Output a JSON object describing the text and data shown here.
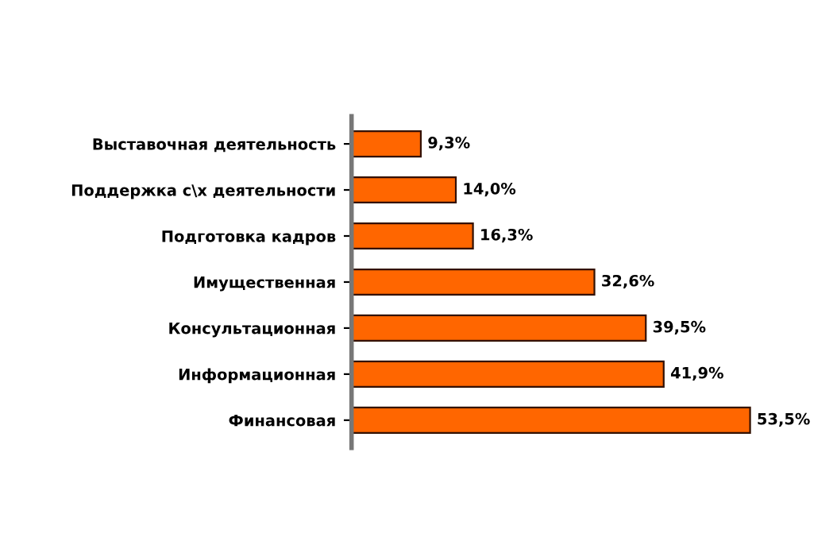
{
  "chart_data": {
    "type": "bar",
    "orientation": "horizontal",
    "categories": [
      "Выставочная деятельность",
      "Поддержка с\\х деятельности",
      "Подготовка кадров",
      "Имущественная",
      "Консультационная",
      "Информационная",
      "Финансовая"
    ],
    "values": [
      9.3,
      14.0,
      16.3,
      32.6,
      39.5,
      41.9,
      53.5
    ],
    "value_labels": [
      "9,3%",
      "14,0%",
      "16,3%",
      "32,6%",
      "39,5%",
      "41,9%",
      "53,5%"
    ],
    "color": "#ff6600",
    "tick_labels": "y",
    "grid": false,
    "legend": false
  }
}
